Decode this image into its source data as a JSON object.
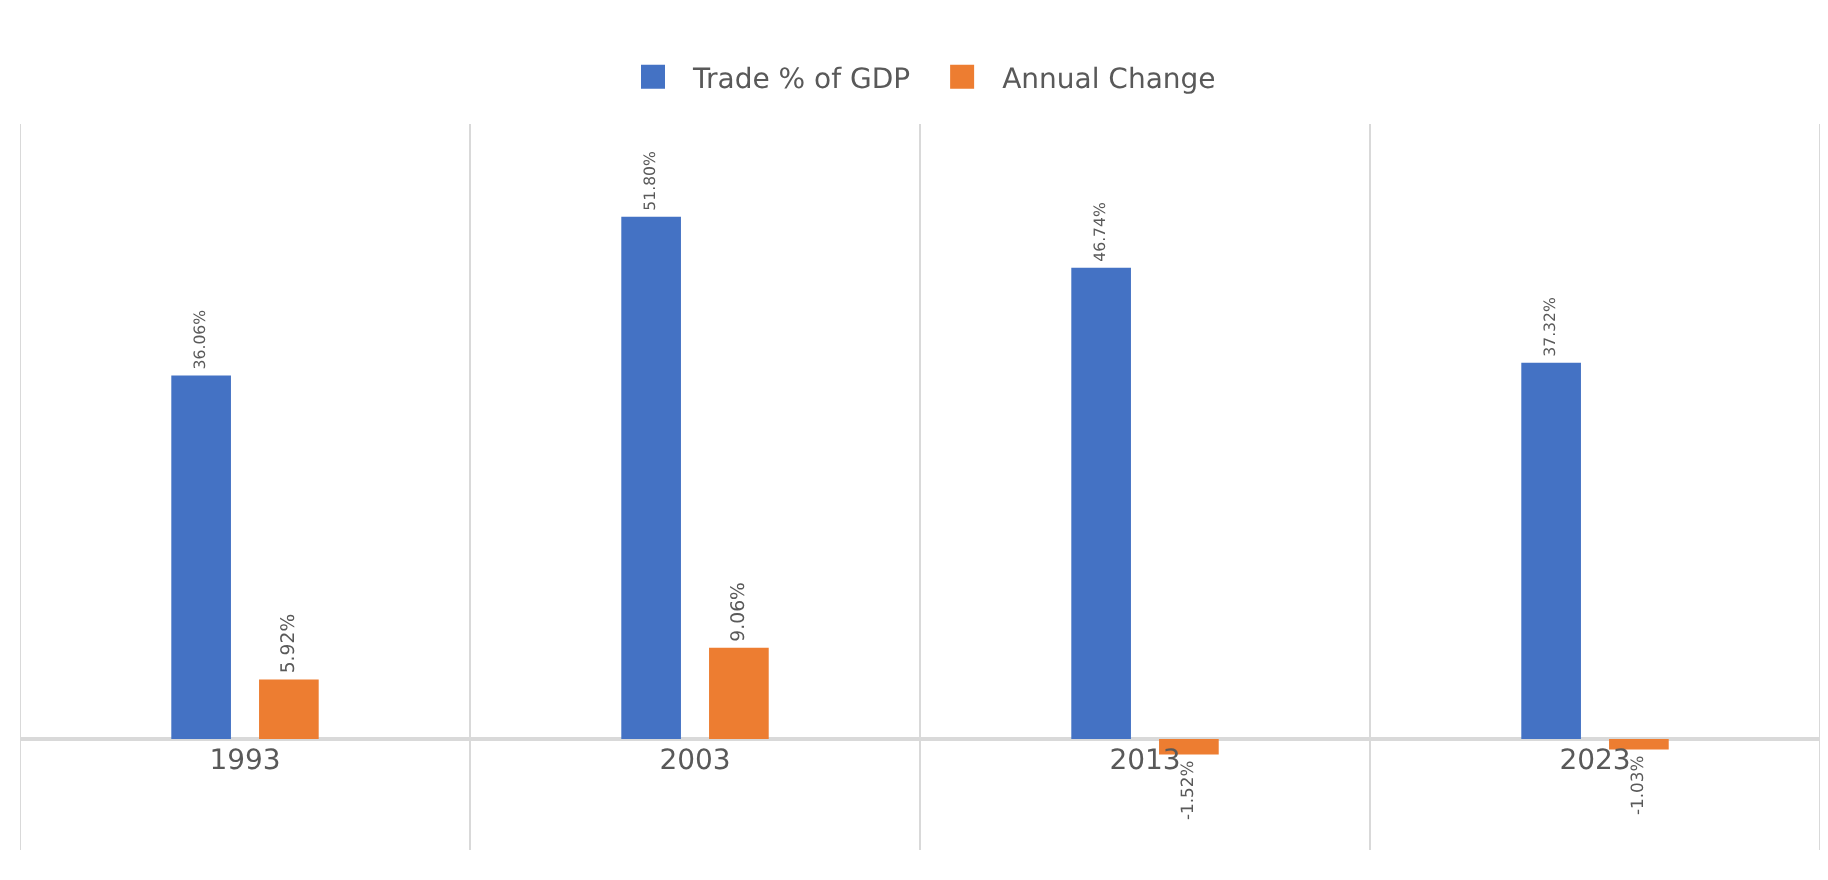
{
  "chart_data": {
    "type": "bar",
    "categories": [
      "1993",
      "2003",
      "2013",
      "2023"
    ],
    "series": [
      {
        "name": "Trade % of GDP",
        "color": "#4472c4",
        "values": [
          36.06,
          51.8,
          46.74,
          37.32
        ],
        "value_labels": [
          "36.06%",
          "51.80%",
          "46.74%",
          "37.32%"
        ]
      },
      {
        "name": "Annual Change",
        "color": "#ed7d31",
        "values": [
          5.92,
          9.06,
          -1.52,
          -1.03
        ],
        "value_labels": [
          "5.92%",
          "9.06%",
          "-1.52%",
          "-1.03%"
        ]
      }
    ],
    "ylim": [
      -11,
      61
    ],
    "grid": "x",
    "legend": "top",
    "tick_labels": "x"
  }
}
